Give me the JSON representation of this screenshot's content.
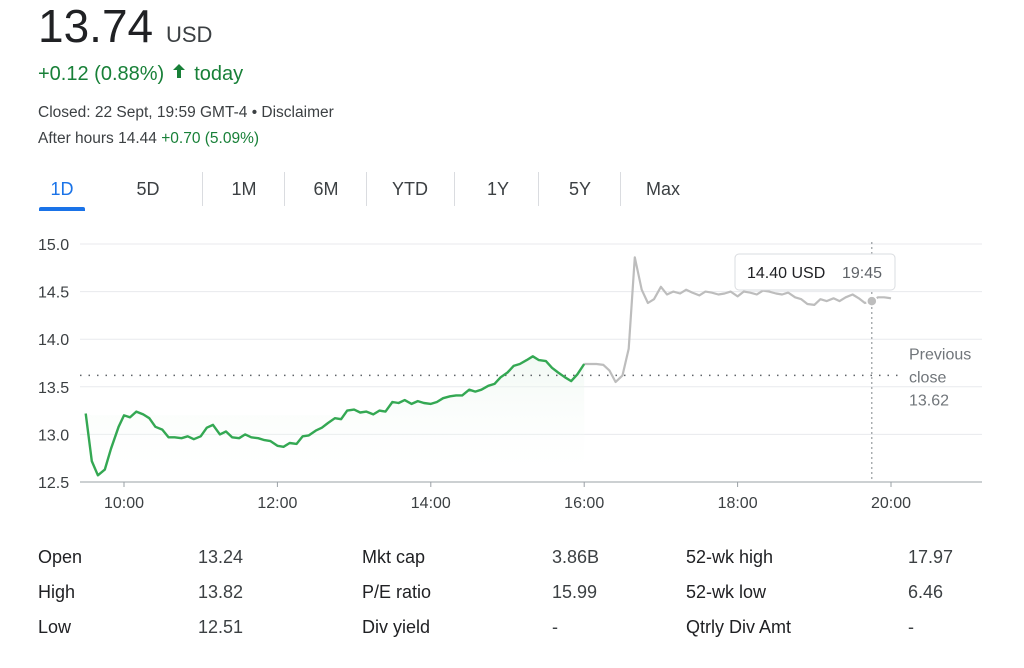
{
  "quote": {
    "price": "13.74",
    "currency": "USD",
    "change": "+0.12 (0.88%)",
    "change_period": "today",
    "closed": "Closed: 22 Sept, 19:59 GMT-4",
    "disclaimer": "Disclaimer",
    "after_hours_label": "After hours 14.44",
    "after_hours_change": "+0.70 (5.09%)",
    "up_color": "#188038",
    "arrow_icon": "arrow-up-icon"
  },
  "tabs": [
    {
      "label": "1D",
      "active": true
    },
    {
      "label": "5D",
      "active": false
    },
    {
      "label": "1M",
      "active": false
    },
    {
      "label": "6M",
      "active": false
    },
    {
      "label": "YTD",
      "active": false
    },
    {
      "label": "1Y",
      "active": false
    },
    {
      "label": "5Y",
      "active": false
    },
    {
      "label": "Max",
      "active": false
    }
  ],
  "chart_data": {
    "type": "line",
    "ylim": [
      12.5,
      15.0
    ],
    "y_ticks": [
      "15.0",
      "14.5",
      "14.0",
      "13.5",
      "13.0",
      "12.5"
    ],
    "x_ticks": [
      {
        "label": "10:00",
        "h": 10
      },
      {
        "label": "12:00",
        "h": 12
      },
      {
        "label": "14:00",
        "h": 14
      },
      {
        "label": "16:00",
        "h": 16
      },
      {
        "label": "18:00",
        "h": 18
      },
      {
        "label": "20:00",
        "h": 20
      }
    ],
    "xlim_hours": [
      9.5,
      21.2
    ],
    "previous_close": 13.62,
    "previous_close_label": [
      "Previous",
      "close",
      "13.62"
    ],
    "grid": true,
    "regular_color": "#34a853",
    "afterhours_color": "#bdbdbd",
    "regular_session": [
      [
        9.5,
        13.22
      ],
      [
        9.58,
        12.72
      ],
      [
        9.66,
        12.57
      ],
      [
        9.75,
        12.63
      ],
      [
        9.83,
        12.85
      ],
      [
        9.93,
        13.08
      ],
      [
        10.0,
        13.2
      ],
      [
        10.08,
        13.18
      ],
      [
        10.16,
        13.24
      ],
      [
        10.25,
        13.21
      ],
      [
        10.33,
        13.17
      ],
      [
        10.41,
        13.08
      ],
      [
        10.5,
        13.05
      ],
      [
        10.58,
        12.97
      ],
      [
        10.66,
        12.97
      ],
      [
        10.75,
        12.96
      ],
      [
        10.83,
        12.98
      ],
      [
        10.91,
        12.95
      ],
      [
        11.0,
        12.98
      ],
      [
        11.08,
        13.07
      ],
      [
        11.16,
        13.1
      ],
      [
        11.25,
        13.0
      ],
      [
        11.33,
        13.03
      ],
      [
        11.41,
        12.97
      ],
      [
        11.5,
        12.96
      ],
      [
        11.58,
        13.0
      ],
      [
        11.66,
        12.97
      ],
      [
        11.75,
        12.96
      ],
      [
        11.83,
        12.94
      ],
      [
        11.91,
        12.93
      ],
      [
        12.0,
        12.88
      ],
      [
        12.08,
        12.87
      ],
      [
        12.16,
        12.91
      ],
      [
        12.25,
        12.9
      ],
      [
        12.33,
        12.98
      ],
      [
        12.41,
        12.99
      ],
      [
        12.5,
        13.04
      ],
      [
        12.58,
        13.07
      ],
      [
        12.66,
        13.12
      ],
      [
        12.75,
        13.17
      ],
      [
        12.83,
        13.16
      ],
      [
        12.91,
        13.25
      ],
      [
        13.0,
        13.26
      ],
      [
        13.08,
        13.23
      ],
      [
        13.16,
        13.24
      ],
      [
        13.25,
        13.21
      ],
      [
        13.33,
        13.25
      ],
      [
        13.41,
        13.24
      ],
      [
        13.5,
        13.34
      ],
      [
        13.58,
        13.33
      ],
      [
        13.66,
        13.36
      ],
      [
        13.75,
        13.32
      ],
      [
        13.83,
        13.35
      ],
      [
        13.91,
        13.33
      ],
      [
        14.0,
        13.32
      ],
      [
        14.08,
        13.34
      ],
      [
        14.16,
        13.38
      ],
      [
        14.25,
        13.4
      ],
      [
        14.33,
        13.41
      ],
      [
        14.41,
        13.41
      ],
      [
        14.5,
        13.47
      ],
      [
        14.58,
        13.45
      ],
      [
        14.66,
        13.47
      ],
      [
        14.75,
        13.51
      ],
      [
        14.83,
        13.53
      ],
      [
        14.91,
        13.6
      ],
      [
        15.0,
        13.65
      ],
      [
        15.08,
        13.72
      ],
      [
        15.16,
        13.74
      ],
      [
        15.25,
        13.78
      ],
      [
        15.33,
        13.82
      ],
      [
        15.41,
        13.78
      ],
      [
        15.5,
        13.77
      ],
      [
        15.58,
        13.7
      ],
      [
        15.66,
        13.65
      ],
      [
        15.75,
        13.6
      ],
      [
        15.83,
        13.56
      ],
      [
        15.91,
        13.63
      ],
      [
        16.0,
        13.74
      ]
    ],
    "after_hours_session": [
      [
        16.0,
        13.74
      ],
      [
        16.08,
        13.74
      ],
      [
        16.16,
        13.74
      ],
      [
        16.25,
        13.73
      ],
      [
        16.33,
        13.67
      ],
      [
        16.41,
        13.55
      ],
      [
        16.5,
        13.62
      ],
      [
        16.58,
        13.9
      ],
      [
        16.66,
        14.86
      ],
      [
        16.75,
        14.52
      ],
      [
        16.83,
        14.38
      ],
      [
        16.91,
        14.42
      ],
      [
        17.0,
        14.55
      ],
      [
        17.08,
        14.47
      ],
      [
        17.16,
        14.5
      ],
      [
        17.25,
        14.48
      ],
      [
        17.33,
        14.52
      ],
      [
        17.41,
        14.49
      ],
      [
        17.5,
        14.46
      ],
      [
        17.58,
        14.5
      ],
      [
        17.66,
        14.49
      ],
      [
        17.75,
        14.47
      ],
      [
        17.83,
        14.48
      ],
      [
        17.91,
        14.5
      ],
      [
        18.0,
        14.45
      ],
      [
        18.08,
        14.5
      ],
      [
        18.16,
        14.49
      ],
      [
        18.25,
        14.47
      ],
      [
        18.33,
        14.51
      ],
      [
        18.41,
        14.5
      ],
      [
        18.5,
        14.48
      ],
      [
        18.58,
        14.47
      ],
      [
        18.66,
        14.49
      ],
      [
        18.75,
        14.44
      ],
      [
        18.83,
        14.42
      ],
      [
        18.91,
        14.37
      ],
      [
        19.0,
        14.36
      ],
      [
        19.08,
        14.42
      ],
      [
        19.16,
        14.4
      ],
      [
        19.25,
        14.43
      ],
      [
        19.33,
        14.4
      ],
      [
        19.41,
        14.44
      ],
      [
        19.5,
        14.47
      ],
      [
        19.58,
        14.43
      ],
      [
        19.66,
        14.38
      ],
      [
        19.75,
        14.4
      ],
      [
        19.83,
        14.44
      ],
      [
        19.91,
        14.44
      ],
      [
        20.0,
        14.43
      ]
    ],
    "hover_point": {
      "h": 19.75,
      "value": 14.4
    },
    "tooltip": {
      "price": "14.40 USD",
      "time": "19:45"
    }
  },
  "stats": [
    [
      {
        "label": "Open",
        "value": "13.24"
      },
      {
        "label": "Mkt cap",
        "value": "3.86B"
      },
      {
        "label": "52-wk high",
        "value": "17.97"
      }
    ],
    [
      {
        "label": "High",
        "value": "13.82"
      },
      {
        "label": "P/E ratio",
        "value": "15.99"
      },
      {
        "label": "52-wk low",
        "value": "6.46"
      }
    ],
    [
      {
        "label": "Low",
        "value": "12.51"
      },
      {
        "label": "Div yield",
        "value": "-"
      },
      {
        "label": "Qtrly Div Amt",
        "value": "-"
      }
    ]
  ]
}
